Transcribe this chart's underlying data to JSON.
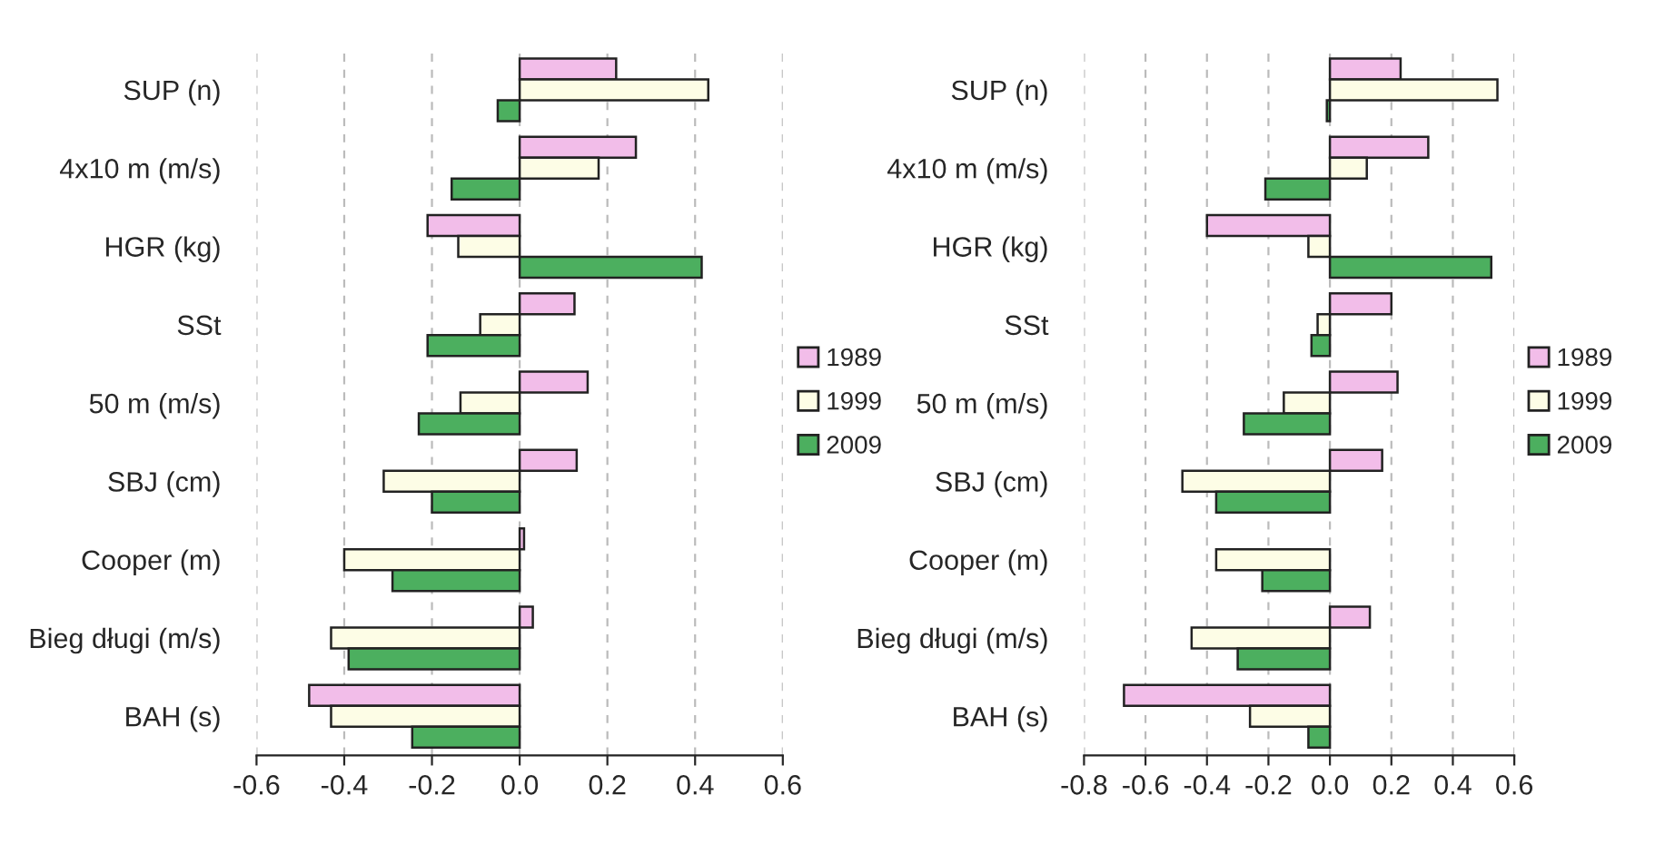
{
  "chart_data": [
    {
      "type": "bar",
      "orientation": "horizontal",
      "categories": [
        "SUP (n)",
        "4x10 m (m/s)",
        "HGR (kg)",
        "SSt",
        "50 m (m/s)",
        "SBJ (cm)",
        "Cooper (m)",
        "Bieg długi (m/s)",
        "BAH (s)"
      ],
      "series": [
        {
          "name": "1989",
          "color": "#f2bde9",
          "values": [
            0.22,
            0.265,
            -0.21,
            0.125,
            0.155,
            0.13,
            0.01,
            0.03,
            -0.48
          ]
        },
        {
          "name": "1999",
          "color": "#fdfde6",
          "values": [
            0.43,
            0.18,
            -0.14,
            -0.09,
            -0.135,
            -0.31,
            -0.4,
            -0.43,
            -0.43
          ]
        },
        {
          "name": "2009",
          "color": "#4caf5f",
          "values": [
            -0.05,
            -0.155,
            0.415,
            -0.21,
            -0.23,
            -0.2,
            -0.29,
            -0.39,
            -0.245
          ]
        }
      ],
      "xlim": [
        -0.6,
        0.6
      ],
      "xticks": [
        {
          "value": -0.6,
          "label": "-0.6"
        },
        {
          "value": -0.4,
          "label": "-0.4"
        },
        {
          "value": -0.2,
          "label": "-0.2"
        },
        {
          "value": 0,
          "label": "0.0"
        },
        {
          "value": 0.2,
          "label": "0.2"
        },
        {
          "value": 0.4,
          "label": "0.4"
        },
        {
          "value": 0.6,
          "label": "0.6"
        }
      ],
      "grid": "x",
      "legend": "right"
    },
    {
      "type": "bar",
      "orientation": "horizontal",
      "categories": [
        "SUP (n)",
        "4x10 m (m/s)",
        "HGR (kg)",
        "SSt",
        "50 m (m/s)",
        "SBJ (cm)",
        "Cooper (m)",
        "Bieg długi (m/s)",
        "BAH (s)"
      ],
      "series": [
        {
          "name": "1989",
          "color": "#f2bde9",
          "values": [
            0.23,
            0.32,
            -0.4,
            0.2,
            0.22,
            0.17,
            null,
            0.13,
            -0.67
          ]
        },
        {
          "name": "1999",
          "color": "#fdfde6",
          "values": [
            0.545,
            0.12,
            -0.07,
            -0.04,
            -0.15,
            -0.48,
            -0.37,
            -0.45,
            -0.26
          ]
        },
        {
          "name": "2009",
          "color": "#4caf5f",
          "values": [
            -0.01,
            -0.21,
            0.525,
            -0.06,
            -0.28,
            -0.37,
            -0.22,
            -0.3,
            -0.07
          ]
        }
      ],
      "xlim": [
        -0.8,
        0.6
      ],
      "xticks": [
        {
          "value": -0.8,
          "label": "-0.8"
        },
        {
          "value": -0.6,
          "label": "-0.6"
        },
        {
          "value": -0.4,
          "label": "-0.4"
        },
        {
          "value": -0.2,
          "label": "-0.2"
        },
        {
          "value": 0,
          "label": "0.0"
        },
        {
          "value": 0.2,
          "label": "0.2"
        },
        {
          "value": 0.4,
          "label": "0.4"
        },
        {
          "value": 0.6,
          "label": "0.6"
        }
      ],
      "grid": "x",
      "legend": "right"
    }
  ]
}
